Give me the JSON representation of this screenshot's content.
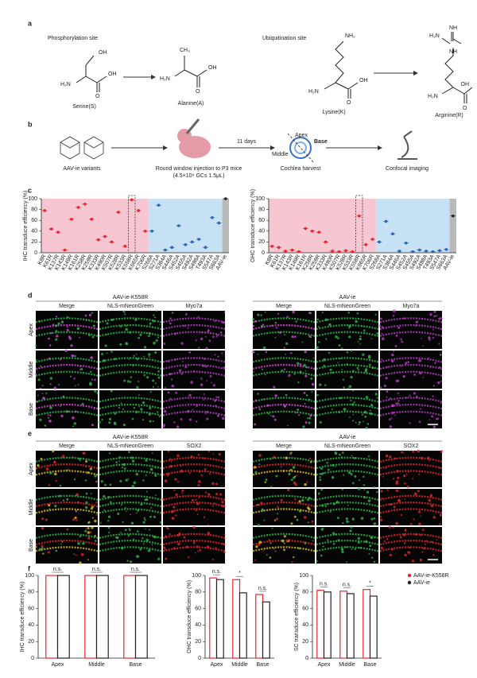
{
  "panels": {
    "a": {
      "label": "a",
      "sites": [
        "Phosphorylation site",
        "Ubiquitination site"
      ],
      "molecules": [
        {
          "name": "Serine(S)",
          "atoms": [
            "OH",
            "H₂N",
            "OH",
            "O"
          ]
        },
        {
          "name": "Alanine(A)",
          "atoms": [
            "CH₃",
            "H₂N",
            "OH",
            "O"
          ]
        },
        {
          "name": "Lysine(K)",
          "atoms": [
            "NH₂",
            "H₂N",
            "OH",
            "O"
          ]
        },
        {
          "name": "Arginine(R)",
          "atoms": [
            "H₂N",
            "NH",
            "NH",
            "H₂N",
            "OH",
            "O"
          ]
        }
      ]
    },
    "b": {
      "label": "b",
      "steps": [
        "AAV-ie variants",
        "Round window injection to P3 mice",
        "Cochlea harvest",
        "Confocal imaging"
      ],
      "dose": "(4.5×10⁹ GCs 1.5μL)",
      "interval": "11 days",
      "regions": [
        "Apex",
        "Middle",
        "Base"
      ]
    },
    "c": {
      "label": "c"
    },
    "d": {
      "label": "d",
      "groups": [
        "AAV-ie-K558R",
        "AAV-ie"
      ],
      "group_colors": [
        "#e8262b",
        "#222222"
      ],
      "channels": [
        "Merge",
        "NLS-mNeonGreen",
        "Myo7a"
      ],
      "channel_colors": [
        "#222222",
        "#2fb84a",
        "#b53fc4"
      ],
      "rows": [
        "Apex",
        "Middle",
        "Base"
      ]
    },
    "e": {
      "label": "e",
      "groups": [
        "AAV-ie-K558R",
        "AAV-ie"
      ],
      "group_colors": [
        "#e8262b",
        "#222222"
      ],
      "channels": [
        "Merge",
        "NLS-mNeonGreen",
        "SOX2"
      ],
      "channel_colors": [
        "#222222",
        "#2fb84a",
        "#e8262b"
      ],
      "rows": [
        "Apex",
        "Middle",
        "Base"
      ]
    },
    "f": {
      "label": "f"
    }
  },
  "chart_data": [
    {
      "type": "strip",
      "ylabel": "IHC transduce efficiency (%)",
      "ylim": [
        0,
        100
      ],
      "yticks": [
        0,
        20,
        40,
        60,
        80,
        100
      ],
      "highlight": "K558R",
      "categories": [
        "K8R",
        "K61R",
        "K137R",
        "K143R",
        "K149R",
        "K161R",
        "K258R",
        "K259R",
        "K333R",
        "K490R",
        "K507R",
        "K528R",
        "K533R",
        "K558R",
        "K665R",
        "K706R",
        "S268A",
        "S271A",
        "S384A",
        "S446A",
        "S452A",
        "S455A",
        "S492A",
        "S498A",
        "T493A",
        "S547A",
        "S663A",
        "AAV-ie"
      ],
      "series": [
        {
          "color": "#e8262b",
          "background": "#f6c6d2",
          "values": [
            78,
            44,
            38,
            5,
            62,
            84,
            90,
            62,
            24,
            30,
            20,
            75,
            12,
            98,
            78,
            40,
            null,
            null,
            null,
            null,
            null,
            null,
            null,
            null,
            null,
            null,
            null,
            null
          ]
        },
        {
          "color": "#2a63b8",
          "background": "#c7e2f5",
          "values": [
            null,
            null,
            null,
            null,
            null,
            null,
            null,
            null,
            null,
            null,
            null,
            null,
            null,
            null,
            null,
            null,
            40,
            88,
            5,
            10,
            50,
            15,
            20,
            25,
            10,
            65,
            55,
            null
          ]
        },
        {
          "color": "#222222",
          "background": "#b9b9b9",
          "values": [
            null,
            null,
            null,
            null,
            null,
            null,
            null,
            null,
            null,
            null,
            null,
            null,
            null,
            null,
            null,
            null,
            null,
            null,
            null,
            null,
            null,
            null,
            null,
            null,
            null,
            null,
            null,
            100
          ]
        }
      ]
    },
    {
      "type": "strip",
      "ylabel": "OHC transduce efficiency (%)",
      "ylim": [
        0,
        100
      ],
      "yticks": [
        0,
        20,
        40,
        60,
        80,
        100
      ],
      "highlight": "K558R",
      "categories": [
        "K8R",
        "K61R",
        "K137R",
        "K143R",
        "K149R",
        "K161R",
        "K258R",
        "K259R",
        "K333R",
        "K490R",
        "K507R",
        "K528R",
        "K533R",
        "K558R",
        "K665R",
        "K706R",
        "S268A",
        "S271A",
        "S384A",
        "S446A",
        "S452A",
        "S455A",
        "S492A",
        "S498A",
        "T493A",
        "S547A",
        "S663A",
        "AAV-ie"
      ],
      "series": [
        {
          "color": "#e8262b",
          "background": "#f6c6d2",
          "values": [
            12,
            10,
            3,
            5,
            2,
            45,
            40,
            38,
            20,
            3,
            2,
            4,
            2,
            68,
            15,
            25,
            null,
            null,
            null,
            null,
            null,
            null,
            null,
            null,
            null,
            null,
            null,
            null
          ]
        },
        {
          "color": "#2a63b8",
          "background": "#c7e2f5",
          "values": [
            null,
            null,
            null,
            null,
            null,
            null,
            null,
            null,
            null,
            null,
            null,
            null,
            null,
            null,
            null,
            null,
            20,
            58,
            35,
            3,
            18,
            2,
            5,
            3,
            2,
            4,
            6,
            null
          ]
        },
        {
          "color": "#222222",
          "background": "#b9b9b9",
          "values": [
            null,
            null,
            null,
            null,
            null,
            null,
            null,
            null,
            null,
            null,
            null,
            null,
            null,
            null,
            null,
            null,
            null,
            null,
            null,
            null,
            null,
            null,
            null,
            null,
            null,
            null,
            null,
            68
          ]
        }
      ]
    },
    {
      "type": "bar",
      "ylabel": "IHC transduce efficiency (%)",
      "ylim": [
        0,
        100
      ],
      "yticks": [
        0,
        20,
        40,
        60,
        80,
        100
      ],
      "categories": [
        "Apex",
        "Middle",
        "Base"
      ],
      "annotations": [
        "n.s.",
        "n.s.",
        "n.s."
      ],
      "series": [
        {
          "name": "AAV-ie-K558R",
          "color": "#e8262b",
          "values": [
            100,
            100,
            100
          ]
        },
        {
          "name": "AAV-ie",
          "color": "#222222",
          "values": [
            100,
            100,
            100
          ]
        }
      ]
    },
    {
      "type": "bar",
      "ylabel": "OHC transduce efficiency (%)",
      "ylim": [
        0,
        100
      ],
      "yticks": [
        0,
        20,
        40,
        60,
        80,
        100
      ],
      "categories": [
        "Apex",
        "Middle",
        "Base"
      ],
      "annotations": [
        "n.s.",
        "*",
        "n.s."
      ],
      "series": [
        {
          "name": "AAV-ie-K558R",
          "color": "#e8262b",
          "values": [
            97,
            95,
            77
          ]
        },
        {
          "name": "AAV-ie",
          "color": "#222222",
          "values": [
            95,
            79,
            68
          ]
        }
      ]
    },
    {
      "type": "bar",
      "ylabel": "SC transduce efficiency (%)",
      "ylim": [
        0,
        100
      ],
      "yticks": [
        0,
        20,
        40,
        60,
        80,
        100
      ],
      "categories": [
        "Apex",
        "Middle",
        "Base"
      ],
      "annotations": [
        "n.s.",
        "n.s.",
        "*"
      ],
      "legend": "right",
      "series": [
        {
          "name": "AAV-ie-K558R",
          "color": "#e8262b",
          "values": [
            82,
            81,
            83
          ]
        },
        {
          "name": "AAV-ie",
          "color": "#222222",
          "values": [
            80,
            78,
            75
          ]
        }
      ]
    }
  ]
}
